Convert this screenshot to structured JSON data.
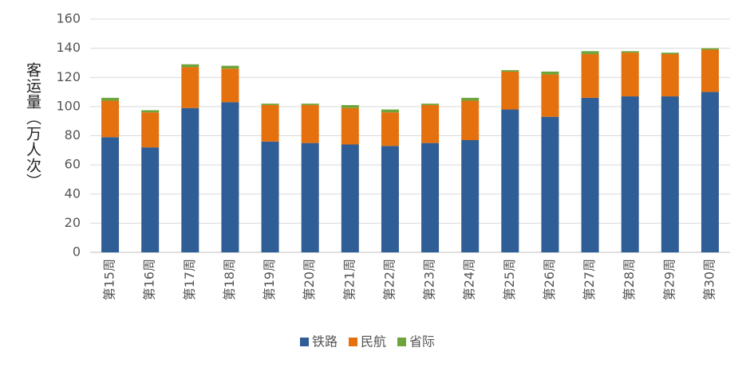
{
  "chart_data": {
    "type": "stacked_bar",
    "y_label": "客运量（万人次）",
    "categories": [
      "第15周",
      "第16周",
      "第17周",
      "第18周",
      "第19周",
      "第20周",
      "第21周",
      "第22周",
      "第23周",
      "第24周",
      "第25周",
      "第26周",
      "第27周",
      "第28周",
      "第29周",
      "第30周"
    ],
    "series": [
      {
        "name": "铁路",
        "color": "#2f5d95",
        "values": [
          79,
          72,
          99,
          103,
          76,
          75,
          74,
          73,
          75,
          77,
          98,
          93,
          106,
          107,
          107,
          110
        ]
      },
      {
        "name": "民航",
        "color": "#e5700e",
        "values": [
          25,
          24,
          28,
          23,
          25,
          26,
          25,
          23,
          26,
          27,
          26,
          29,
          30,
          30,
          29,
          29
        ]
      },
      {
        "name": "省际",
        "color": "#6fa43a",
        "values": [
          2,
          1.5,
          2,
          2,
          1,
          1,
          2,
          2,
          1,
          2,
          1,
          2,
          2,
          1,
          1,
          1
        ]
      }
    ],
    "ylim": [
      0,
      160
    ],
    "yticks": [
      0,
      20,
      40,
      60,
      80,
      100,
      120,
      140,
      160
    ],
    "grid": true
  }
}
